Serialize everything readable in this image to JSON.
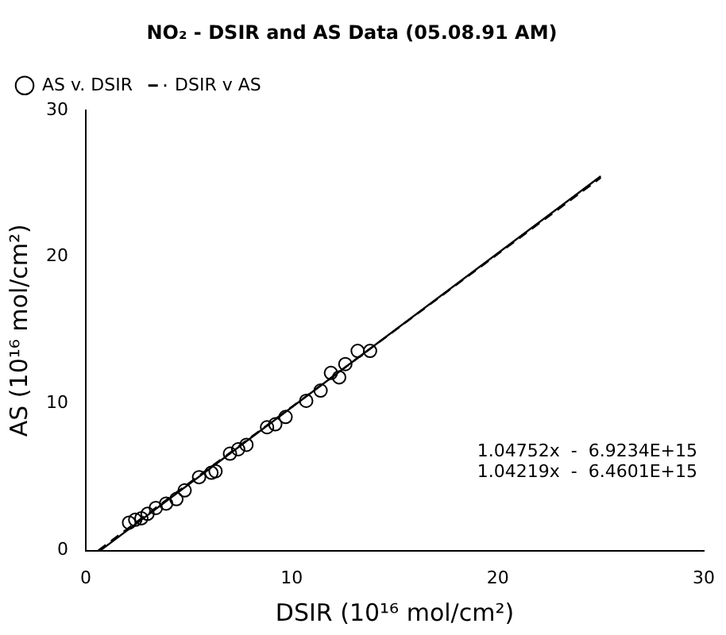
{
  "chart_data": {
    "type": "scatter",
    "title": "NO₂ - DSIR and AS Data (05.08.91 AM)",
    "xlabel": "DSIR (10¹⁶ mol/cm²)",
    "ylabel": "AS (10¹⁶ mol/cm²)",
    "xlim": [
      0,
      30
    ],
    "xticks": [
      0,
      10,
      20,
      30
    ],
    "ylim": [
      0,
      30
    ],
    "yticks": [
      0,
      10,
      20,
      30
    ],
    "grid": false,
    "legend": "top left",
    "series": [
      {
        "name": "AS v. DSIR",
        "marker": "circle",
        "color": "#000000",
        "x": [
          2.1,
          2.4,
          2.7,
          3.0,
          3.4,
          3.9,
          4.4,
          4.8,
          5.5,
          6.1,
          6.3,
          7.0,
          7.4,
          7.8,
          8.8,
          9.2,
          9.7,
          10.7,
          11.4,
          11.9,
          12.3,
          12.6,
          13.2,
          13.8
        ],
        "values": [
          1.9,
          2.1,
          2.2,
          2.5,
          2.9,
          3.2,
          3.5,
          4.1,
          5.0,
          5.3,
          5.4,
          6.6,
          6.9,
          7.2,
          8.4,
          8.6,
          9.1,
          10.2,
          10.9,
          12.1,
          11.8,
          12.7,
          13.6,
          13.6
        ]
      },
      {
        "type": "line",
        "marker": "none",
        "line_style": "solid",
        "color": "#000000",
        "x": [
          0.7,
          25
        ],
        "values": [
          0,
          25.5
        ]
      },
      {
        "name": "DSIR v AS",
        "type": "line",
        "marker": "none",
        "line_style": "dashed",
        "color": "#000000",
        "x": [
          0.6,
          25
        ],
        "values": [
          0,
          25.4
        ]
      }
    ],
    "annotations": [
      "1.04752x  -  6.9234E+15",
      "1.04219x  -  6.4601E+15"
    ]
  }
}
